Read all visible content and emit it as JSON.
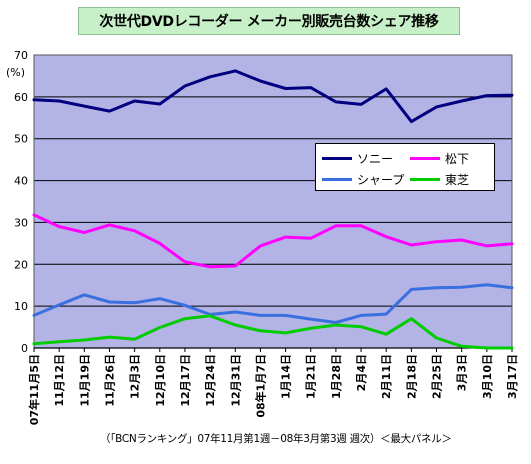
{
  "chart_data": {
    "type": "line",
    "title": "次世代DVDレコーダー メーカー別販売台数シェア推移",
    "ylabel": "(%)",
    "xlabel": "",
    "ylim": [
      0,
      70
    ],
    "yticks": [
      0,
      10,
      20,
      30,
      40,
      50,
      60,
      70
    ],
    "grid": "horizontal",
    "legend_position": "center-right",
    "plot_background": "#b3b3e6",
    "categories": [
      "07年11月5日",
      "11月12日",
      "11月19日",
      "11月26日",
      "12月3日",
      "12月10日",
      "12月17日",
      "12月24日",
      "12月31日",
      "08年1月7日",
      "1月14日",
      "1月21日",
      "1月28日",
      "2月4日",
      "2月11日",
      "2月18日",
      "2月25日",
      "3月3日",
      "3月10日",
      "3月17日"
    ],
    "series": [
      {
        "name": "ソニー",
        "color": "#000080",
        "values": [
          59.3,
          59.0,
          57.8,
          56.6,
          59.0,
          58.3,
          62.6,
          64.8,
          66.2,
          63.8,
          62.0,
          62.2,
          58.8,
          58.2,
          61.9,
          54.1,
          57.6,
          59.0,
          60.3,
          60.4
        ]
      },
      {
        "name": "松下",
        "color": "#ff00ff",
        "values": [
          31.8,
          29.0,
          27.6,
          29.4,
          28.0,
          25.0,
          20.6,
          19.4,
          19.6,
          24.4,
          26.5,
          26.2,
          29.2,
          29.2,
          26.6,
          24.6,
          25.4,
          25.8,
          24.4,
          24.9
        ]
      },
      {
        "name": "シャープ",
        "color": "#3a6fe0",
        "values": [
          7.8,
          10.3,
          12.7,
          11.0,
          10.8,
          11.8,
          10.2,
          8.0,
          8.6,
          7.8,
          7.8,
          6.9,
          6.1,
          7.8,
          8.1,
          14.0,
          14.4,
          14.5,
          15.1,
          14.4
        ]
      },
      {
        "name": "東芝",
        "color": "#00cc00",
        "values": [
          1.0,
          1.5,
          1.9,
          2.6,
          2.1,
          4.9,
          7.0,
          7.7,
          5.5,
          4.1,
          3.6,
          4.7,
          5.5,
          5.1,
          3.3,
          7.0,
          2.4,
          0.4,
          0.0,
          0.0
        ]
      }
    ],
    "footnote": "（「BCNランキング」07年11月第1週－08年3月第3週 週次）＜最大パネル＞"
  }
}
